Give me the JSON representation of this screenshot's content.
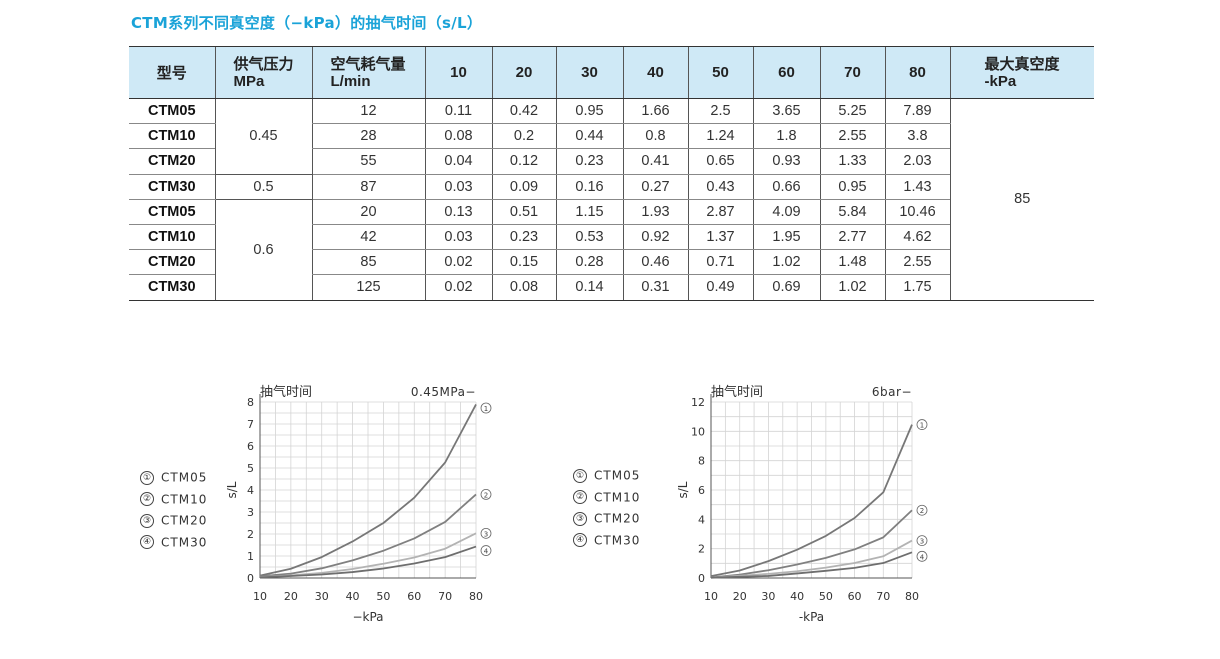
{
  "title": "CTM系列不同真空度（−kPa）的抽气时间（s/L）",
  "table": {
    "headers": [
      "型号",
      "供气压力",
      "MPa",
      "空气耗气量",
      "L/min",
      "10",
      "20",
      "30",
      "40",
      "50",
      "60",
      "70",
      "80",
      "最大真空度",
      "-kPa"
    ],
    "rows": [
      {
        "model": "CTM05",
        "flow": "12",
        "v": [
          "0.11",
          "0.42",
          "0.95",
          "1.66",
          "2.5",
          "3.65",
          "5.25",
          "7.89"
        ]
      },
      {
        "model": "CTM10",
        "flow": "28",
        "v": [
          "0.08",
          "0.2",
          "0.44",
          "0.8",
          "1.24",
          "1.8",
          "2.55",
          "3.8"
        ]
      },
      {
        "model": "CTM20",
        "flow": "55",
        "v": [
          "0.04",
          "0.12",
          "0.23",
          "0.41",
          "0.65",
          "0.93",
          "1.33",
          "2.03"
        ]
      },
      {
        "model": "CTM30",
        "flow": "87",
        "v": [
          "0.03",
          "0.09",
          "0.16",
          "0.27",
          "0.43",
          "0.66",
          "0.95",
          "1.43"
        ]
      },
      {
        "model": "CTM05",
        "flow": "20",
        "v": [
          "0.13",
          "0.51",
          "1.15",
          "1.93",
          "2.87",
          "4.09",
          "5.84",
          "10.46"
        ]
      },
      {
        "model": "CTM10",
        "flow": "42",
        "v": [
          "0.03",
          "0.23",
          "0.53",
          "0.92",
          "1.37",
          "1.95",
          "2.77",
          "4.62"
        ]
      },
      {
        "model": "CTM20",
        "flow": "85",
        "v": [
          "0.02",
          "0.15",
          "0.28",
          "0.46",
          "0.71",
          "1.02",
          "1.48",
          "2.55"
        ]
      },
      {
        "model": "CTM30",
        "flow": "125",
        "v": [
          "0.02",
          "0.08",
          "0.14",
          "0.31",
          "0.49",
          "0.69",
          "1.02",
          "1.75"
        ]
      }
    ],
    "pressures": [
      "0.45",
      "0.5",
      "0.6"
    ],
    "max_vacuum": "85"
  },
  "legend": [
    {
      "mark": "①",
      "label": "CTM05"
    },
    {
      "mark": "②",
      "label": "CTM10"
    },
    {
      "mark": "③",
      "label": "CTM20"
    },
    {
      "mark": "④",
      "label": "CTM30"
    }
  ],
  "colors": {
    "title": "#1aa3d8",
    "header_bg": "#cfe9f6",
    "series": [
      "#777777",
      "#808080",
      "#b3b3b3",
      "#6e6e6e"
    ]
  },
  "chart_data": [
    {
      "type": "line",
      "title": "抽气时间",
      "corner_label": "0.45MPa−",
      "xlabel": "−kPa",
      "ylabel": "s/L",
      "x": [
        10,
        20,
        30,
        40,
        50,
        60,
        70,
        80
      ],
      "xticks": [
        10,
        20,
        30,
        40,
        50,
        60,
        70,
        80
      ],
      "yticks": [
        0,
        1,
        2,
        3,
        4,
        5,
        6,
        7,
        8
      ],
      "ylim": [
        0,
        8
      ],
      "grid": true,
      "series": [
        {
          "name": "①",
          "values": [
            0.11,
            0.42,
            0.95,
            1.66,
            2.5,
            3.65,
            5.25,
            7.89
          ]
        },
        {
          "name": "②",
          "values": [
            0.08,
            0.2,
            0.44,
            0.8,
            1.24,
            1.8,
            2.55,
            3.8
          ]
        },
        {
          "name": "③",
          "values": [
            0.04,
            0.12,
            0.23,
            0.41,
            0.65,
            0.93,
            1.33,
            2.03
          ]
        },
        {
          "name": "④",
          "values": [
            0.03,
            0.09,
            0.16,
            0.27,
            0.43,
            0.66,
            0.95,
            1.43
          ]
        }
      ]
    },
    {
      "type": "line",
      "title": "抽气时间",
      "corner_label": "6bar−",
      "xlabel": "-kPa",
      "ylabel": "s/L",
      "x": [
        10,
        20,
        30,
        40,
        50,
        60,
        70,
        80
      ],
      "xticks": [
        10,
        20,
        30,
        40,
        50,
        60,
        70,
        80
      ],
      "yticks": [
        0,
        2,
        4,
        6,
        8,
        10,
        12
      ],
      "ylim": [
        0,
        12
      ],
      "grid": true,
      "series": [
        {
          "name": "①",
          "values": [
            0.13,
            0.51,
            1.15,
            1.93,
            2.87,
            4.09,
            5.84,
            10.46
          ]
        },
        {
          "name": "②",
          "values": [
            0.03,
            0.23,
            0.53,
            0.92,
            1.37,
            1.95,
            2.77,
            4.62
          ]
        },
        {
          "name": "③",
          "values": [
            0.02,
            0.15,
            0.28,
            0.46,
            0.71,
            1.02,
            1.48,
            2.55
          ]
        },
        {
          "name": "④",
          "values": [
            0.02,
            0.08,
            0.14,
            0.31,
            0.49,
            0.69,
            1.02,
            1.75
          ]
        }
      ]
    }
  ]
}
